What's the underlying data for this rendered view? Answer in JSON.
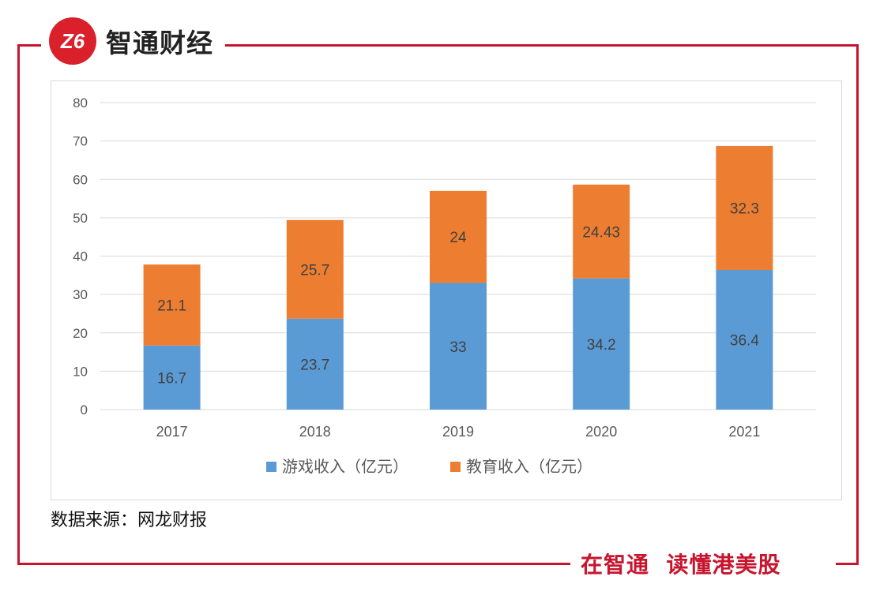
{
  "header": {
    "brand_name": "智通财经",
    "logo_glyph": "Z6",
    "brand_color": "#c8152e"
  },
  "footer": {
    "source_text": "数据来源：网龙财报",
    "slogan": "在智通  读懂港美股"
  },
  "chart_data": {
    "type": "bar",
    "stacked": true,
    "title": "",
    "xlabel": "",
    "ylabel": "",
    "categories": [
      "2017",
      "2018",
      "2019",
      "2020",
      "2021"
    ],
    "ylim": [
      0,
      80
    ],
    "yticks": [
      0,
      10,
      20,
      30,
      40,
      50,
      60,
      70,
      80
    ],
    "grid": true,
    "legend_position": "bottom",
    "series": [
      {
        "name": "游戏收入（亿元）",
        "color": "#5b9bd5",
        "values": [
          16.7,
          23.7,
          33,
          34.2,
          36.4
        ],
        "labels": [
          "16.7",
          "23.7",
          "33",
          "34.2",
          "36.4"
        ]
      },
      {
        "name": "教育收入（亿元）",
        "color": "#ed7d31",
        "values": [
          21.1,
          25.7,
          24,
          24.43,
          32.3
        ],
        "labels": [
          "21.1",
          "25.7",
          "24",
          "24.43",
          "32.3"
        ]
      }
    ]
  }
}
